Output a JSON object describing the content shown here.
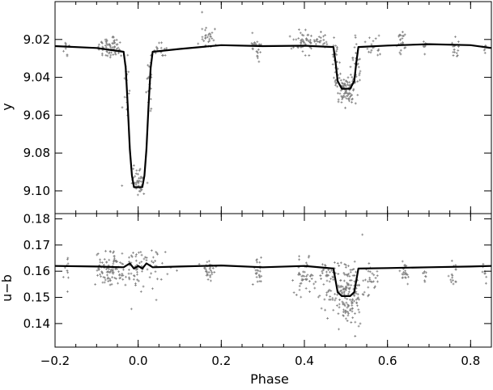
{
  "chart_data": [
    {
      "type": "scatter",
      "panel": "top",
      "xlabel": "",
      "ylabel": "y",
      "xlim": [
        -0.2,
        0.85
      ],
      "ylim": [
        9.112,
        9.0
      ],
      "y_inverted": true,
      "x_ticks": [
        -0.2,
        0.0,
        0.2,
        0.4,
        0.6,
        0.8
      ],
      "y_ticks": [
        9.02,
        9.04,
        9.06,
        9.08,
        9.1
      ],
      "y_tick_labels": [
        "9.02",
        "9.04",
        "9.06",
        "9.08",
        "9.10"
      ],
      "point_color": "#7f7f7f",
      "model_color": "#000000",
      "model_curve": {
        "x": [
          -0.2,
          -0.1,
          -0.035,
          -0.03,
          -0.025,
          -0.02,
          -0.015,
          -0.01,
          0.0,
          0.01,
          0.015,
          0.02,
          0.025,
          0.03,
          0.035,
          0.1,
          0.2,
          0.3,
          0.4,
          0.47,
          0.475,
          0.48,
          0.49,
          0.51,
          0.52,
          0.525,
          0.53,
          0.6,
          0.7,
          0.8,
          0.85
        ],
        "y": [
          9.0235,
          9.0245,
          9.0265,
          9.035,
          9.055,
          9.078,
          9.092,
          9.098,
          9.098,
          9.098,
          9.092,
          9.078,
          9.055,
          9.035,
          9.0265,
          9.025,
          9.023,
          9.0235,
          9.0233,
          9.024,
          9.032,
          9.042,
          9.046,
          9.046,
          9.042,
          9.032,
          9.024,
          9.0232,
          9.0225,
          9.023,
          9.0245
        ]
      },
      "data_clusters": [
        {
          "x": -0.175,
          "y": 9.025,
          "spread_x": 0.004,
          "spread_y": 0.003,
          "n": 8
        },
        {
          "x": -0.065,
          "y": 9.024,
          "spread_x": 0.02,
          "spread_y": 0.004,
          "n": 70
        },
        {
          "x": -0.028,
          "y": 9.045,
          "spread_x": 0.005,
          "spread_y": 0.012,
          "n": 18
        },
        {
          "x": 0.0,
          "y": 9.095,
          "spread_x": 0.012,
          "spread_y": 0.006,
          "n": 45
        },
        {
          "x": 0.028,
          "y": 9.045,
          "spread_x": 0.005,
          "spread_y": 0.012,
          "n": 18
        },
        {
          "x": 0.055,
          "y": 9.025,
          "spread_x": 0.012,
          "spread_y": 0.003,
          "n": 15
        },
        {
          "x": 0.17,
          "y": 9.019,
          "spread_x": 0.013,
          "spread_y": 0.004,
          "n": 30
        },
        {
          "x": 0.285,
          "y": 9.024,
          "spread_x": 0.008,
          "spread_y": 0.004,
          "n": 25
        },
        {
          "x": 0.395,
          "y": 9.021,
          "spread_x": 0.015,
          "spread_y": 0.004,
          "n": 45
        },
        {
          "x": 0.445,
          "y": 9.021,
          "spread_x": 0.01,
          "spread_y": 0.004,
          "n": 20
        },
        {
          "x": 0.475,
          "y": 9.032,
          "spread_x": 0.006,
          "spread_y": 0.007,
          "n": 25
        },
        {
          "x": 0.5,
          "y": 9.046,
          "spread_x": 0.015,
          "spread_y": 0.005,
          "n": 95
        },
        {
          "x": 0.527,
          "y": 9.032,
          "spread_x": 0.006,
          "spread_y": 0.007,
          "n": 25
        },
        {
          "x": 0.565,
          "y": 9.023,
          "spread_x": 0.01,
          "spread_y": 0.003,
          "n": 18
        },
        {
          "x": 0.635,
          "y": 9.021,
          "spread_x": 0.01,
          "spread_y": 0.004,
          "n": 22
        },
        {
          "x": 0.69,
          "y": 9.023,
          "spread_x": 0.004,
          "spread_y": 0.003,
          "n": 8
        },
        {
          "x": 0.765,
          "y": 9.024,
          "spread_x": 0.008,
          "spread_y": 0.004,
          "n": 15
        },
        {
          "x": 0.835,
          "y": 9.024,
          "spread_x": 0.006,
          "spread_y": 0.003,
          "n": 8
        }
      ]
    },
    {
      "type": "scatter",
      "panel": "bottom",
      "xlabel": "Phase",
      "ylabel": "u−b",
      "xlim": [
        -0.2,
        0.85
      ],
      "ylim": [
        0.131,
        0.182
      ],
      "x_ticks": [
        -0.2,
        0.0,
        0.2,
        0.4,
        0.6,
        0.8
      ],
      "x_tick_labels": [
        "−0.2",
        "0.0",
        "0.2",
        "0.4",
        "0.6",
        "0.8"
      ],
      "y_ticks": [
        0.14,
        0.15,
        0.16,
        0.17,
        0.18
      ],
      "y_tick_labels": [
        "0.14",
        "0.15",
        "0.16",
        "0.17",
        "0.18"
      ],
      "point_color": "#7f7f7f",
      "model_color": "#000000",
      "model_curve": {
        "x": [
          -0.2,
          -0.1,
          -0.035,
          -0.02,
          -0.01,
          0.0,
          0.01,
          0.02,
          0.035,
          0.1,
          0.2,
          0.3,
          0.4,
          0.47,
          0.48,
          0.49,
          0.51,
          0.52,
          0.53,
          0.6,
          0.7,
          0.8,
          0.85
        ],
        "y": [
          0.162,
          0.1618,
          0.1615,
          0.163,
          0.161,
          0.162,
          0.161,
          0.163,
          0.1615,
          0.1618,
          0.1622,
          0.1615,
          0.162,
          0.161,
          0.152,
          0.1505,
          0.1505,
          0.152,
          0.161,
          0.1612,
          0.1615,
          0.1618,
          0.162
        ]
      },
      "data_clusters": [
        {
          "x": -0.17,
          "y": 0.161,
          "spread_x": 0.006,
          "spread_y": 0.004,
          "n": 10
        },
        {
          "x": -0.07,
          "y": 0.161,
          "spread_x": 0.02,
          "spread_y": 0.004,
          "n": 80
        },
        {
          "x": 0.0,
          "y": 0.161,
          "spread_x": 0.04,
          "spread_y": 0.005,
          "n": 90
        },
        {
          "x": 0.17,
          "y": 0.16,
          "spread_x": 0.012,
          "spread_y": 0.003,
          "n": 30
        },
        {
          "x": 0.29,
          "y": 0.16,
          "spread_x": 0.01,
          "spread_y": 0.003,
          "n": 25
        },
        {
          "x": 0.4,
          "y": 0.158,
          "spread_x": 0.015,
          "spread_y": 0.004,
          "n": 45
        },
        {
          "x": 0.45,
          "y": 0.158,
          "spread_x": 0.01,
          "spread_y": 0.004,
          "n": 20
        },
        {
          "x": 0.5,
          "y": 0.152,
          "spread_x": 0.03,
          "spread_y": 0.008,
          "n": 190
        },
        {
          "x": 0.565,
          "y": 0.158,
          "spread_x": 0.01,
          "spread_y": 0.003,
          "n": 20
        },
        {
          "x": 0.64,
          "y": 0.159,
          "spread_x": 0.01,
          "spread_y": 0.003,
          "n": 22
        },
        {
          "x": 0.69,
          "y": 0.158,
          "spread_x": 0.004,
          "spread_y": 0.002,
          "n": 8
        },
        {
          "x": 0.76,
          "y": 0.159,
          "spread_x": 0.01,
          "spread_y": 0.003,
          "n": 15
        },
        {
          "x": 0.835,
          "y": 0.159,
          "spread_x": 0.006,
          "spread_y": 0.003,
          "n": 8
        }
      ]
    }
  ]
}
